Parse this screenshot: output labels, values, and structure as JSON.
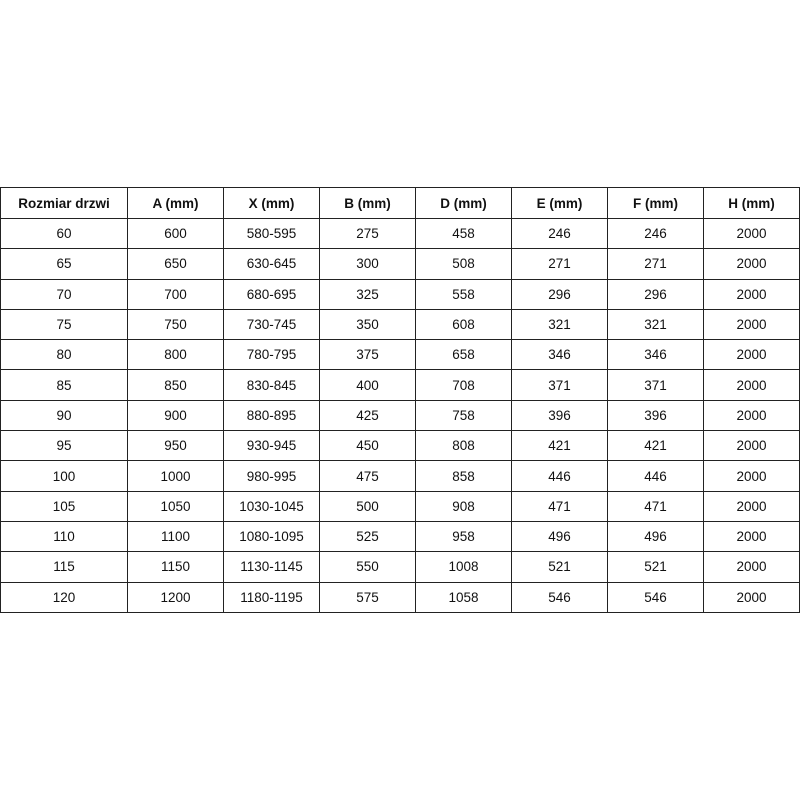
{
  "table": {
    "headers": [
      "Rozmiar drzwi",
      "A (mm)",
      "X (mm)",
      "B (mm)",
      "D (mm)",
      "E (mm)",
      "F (mm)",
      "H (mm)"
    ],
    "rows": [
      [
        "60",
        "600",
        "580-595",
        "275",
        "458",
        "246",
        "246",
        "2000"
      ],
      [
        "65",
        "650",
        "630-645",
        "300",
        "508",
        "271",
        "271",
        "2000"
      ],
      [
        "70",
        "700",
        "680-695",
        "325",
        "558",
        "296",
        "296",
        "2000"
      ],
      [
        "75",
        "750",
        "730-745",
        "350",
        "608",
        "321",
        "321",
        "2000"
      ],
      [
        "80",
        "800",
        "780-795",
        "375",
        "658",
        "346",
        "346",
        "2000"
      ],
      [
        "85",
        "850",
        "830-845",
        "400",
        "708",
        "371",
        "371",
        "2000"
      ],
      [
        "90",
        "900",
        "880-895",
        "425",
        "758",
        "396",
        "396",
        "2000"
      ],
      [
        "95",
        "950",
        "930-945",
        "450",
        "808",
        "421",
        "421",
        "2000"
      ],
      [
        "100",
        "1000",
        "980-995",
        "475",
        "858",
        "446",
        "446",
        "2000"
      ],
      [
        "105",
        "1050",
        "1030-1045",
        "500",
        "908",
        "471",
        "471",
        "2000"
      ],
      [
        "110",
        "1100",
        "1080-1095",
        "525",
        "958",
        "496",
        "496",
        "2000"
      ],
      [
        "115",
        "1150",
        "1130-1145",
        "550",
        "1008",
        "521",
        "521",
        "2000"
      ],
      [
        "120",
        "1200",
        "1180-1195",
        "575",
        "1058",
        "546",
        "546",
        "2000"
      ]
    ]
  }
}
